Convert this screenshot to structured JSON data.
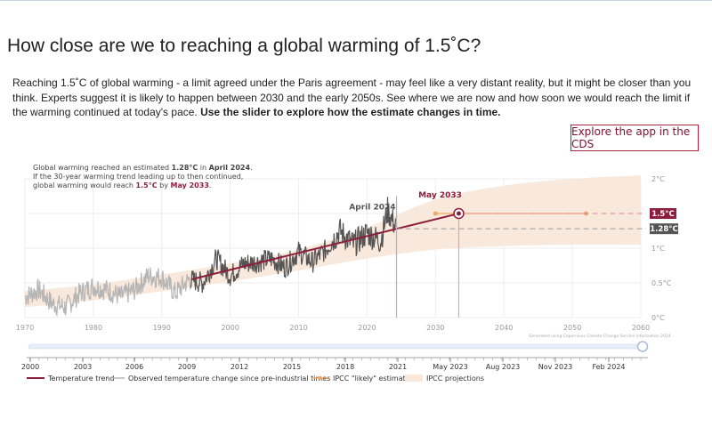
{
  "page": {
    "title": "How close are we to reaching a global warming of 1.5˚C?",
    "intro_text": "Reaching 1.5˚C of global warming - a limit agreed under the Paris agreement - may feel like a very distant reality, but it might be closer than you think. Experts suggest it is likely to happen between 2030 and the early 2050s. See where we are now and how soon we would reach the limit if the warming continued at today's pace.",
    "intro_bold": "Use the slider to explore how the estimate changes in time.",
    "cds_button": "Explore the app in the CDS"
  },
  "chart_info": {
    "line1_pre": "Global warming reached an estimated ",
    "line1_value": "1.28°C",
    "line1_mid": " in ",
    "line1_date": "April 2024",
    "line1_post": ".",
    "line2": "If the 30-year warming trend leading up to then continued,",
    "line3_pre": "global warming would reach ",
    "line3_value": "1.5°C",
    "line3_mid": " by ",
    "line3_date": "May 2033",
    "line3_post": "."
  },
  "colors": {
    "trend": "#8c1d3c",
    "observed_old": "#b5b5b5",
    "observed_recent": "#555555",
    "estimate": "#f0a867",
    "projection_band": "#f9e8dc",
    "badge_15": "#8c1d3c",
    "badge_128": "#555555"
  },
  "chart_data": {
    "type": "line",
    "xlim": [
      1970,
      2060
    ],
    "ylim": [
      0,
      2
    ],
    "x_ticks": [
      "1970",
      "1980",
      "1990",
      "2000",
      "2010",
      "2020",
      "2030",
      "2040",
      "2050",
      "2060"
    ],
    "y_ticks": [
      "0°C",
      "0.5°C",
      "1°C",
      "1.5°C",
      "2°C"
    ],
    "series": [
      {
        "name": "Observed temperature change since pre-industrial times",
        "x": [
          1970,
          1972,
          1974,
          1976,
          1978,
          1980,
          1982,
          1984,
          1986,
          1988,
          1990,
          1992,
          1994,
          1996,
          1998,
          2000,
          2002,
          2004,
          2006,
          2008,
          2010,
          2012,
          2014,
          2016,
          2018,
          2020,
          2022,
          2023,
          2024.3
        ],
        "y": [
          0.3,
          0.4,
          0.2,
          0.15,
          0.35,
          0.45,
          0.4,
          0.3,
          0.4,
          0.6,
          0.58,
          0.35,
          0.55,
          0.5,
          0.85,
          0.6,
          0.78,
          0.8,
          0.85,
          0.72,
          0.95,
          0.8,
          0.98,
          1.25,
          1.05,
          1.22,
          1.1,
          1.55,
          1.28
        ]
      },
      {
        "name": "Temperature trend",
        "x": [
          1994.3,
          2033.4
        ],
        "y": [
          0.55,
          1.5
        ]
      }
    ],
    "projection_band": {
      "name": "IPCC projections",
      "x": [
        1970,
        1980,
        1990,
        2000,
        2010,
        2020,
        2030,
        2040,
        2050,
        2060
      ],
      "lower": [
        0.15,
        0.25,
        0.38,
        0.52,
        0.68,
        0.85,
        0.98,
        1.03,
        1.05,
        1.05
      ],
      "upper": [
        0.38,
        0.48,
        0.62,
        0.78,
        0.98,
        1.3,
        1.7,
        1.9,
        2.0,
        2.05
      ]
    },
    "ipcc_likely_estimate": {
      "name": "IPCC \"likely\" estimate",
      "x": [
        2030,
        2052
      ]
    },
    "markers": {
      "current_date": "April 2024",
      "current_x": 2024.3,
      "current_value": 1.28,
      "reach_date": "May 2033",
      "reach_x": 2033.4,
      "reach_value": 1.5,
      "badge_15": "1.5°C",
      "badge_128": "1.28°C"
    },
    "credit": "Generated using Copernicus Climate Change Service information 2024.",
    "slider": {
      "ticks": [
        "2000",
        "2003",
        "2006",
        "2009",
        "2012",
        "2015",
        "2018",
        "2021",
        "May 2023",
        "Aug 2023",
        "Nov 2023",
        "Feb 2024"
      ],
      "position": 1.0
    },
    "legend": [
      {
        "key": "trend",
        "label": "Temperature trend"
      },
      {
        "key": "observed",
        "label": "Observed temperature change since pre-industrial times"
      },
      {
        "key": "estimate",
        "label": "IPCC \"likely\" estimate"
      },
      {
        "key": "band",
        "label": "IPCC projections"
      }
    ]
  }
}
